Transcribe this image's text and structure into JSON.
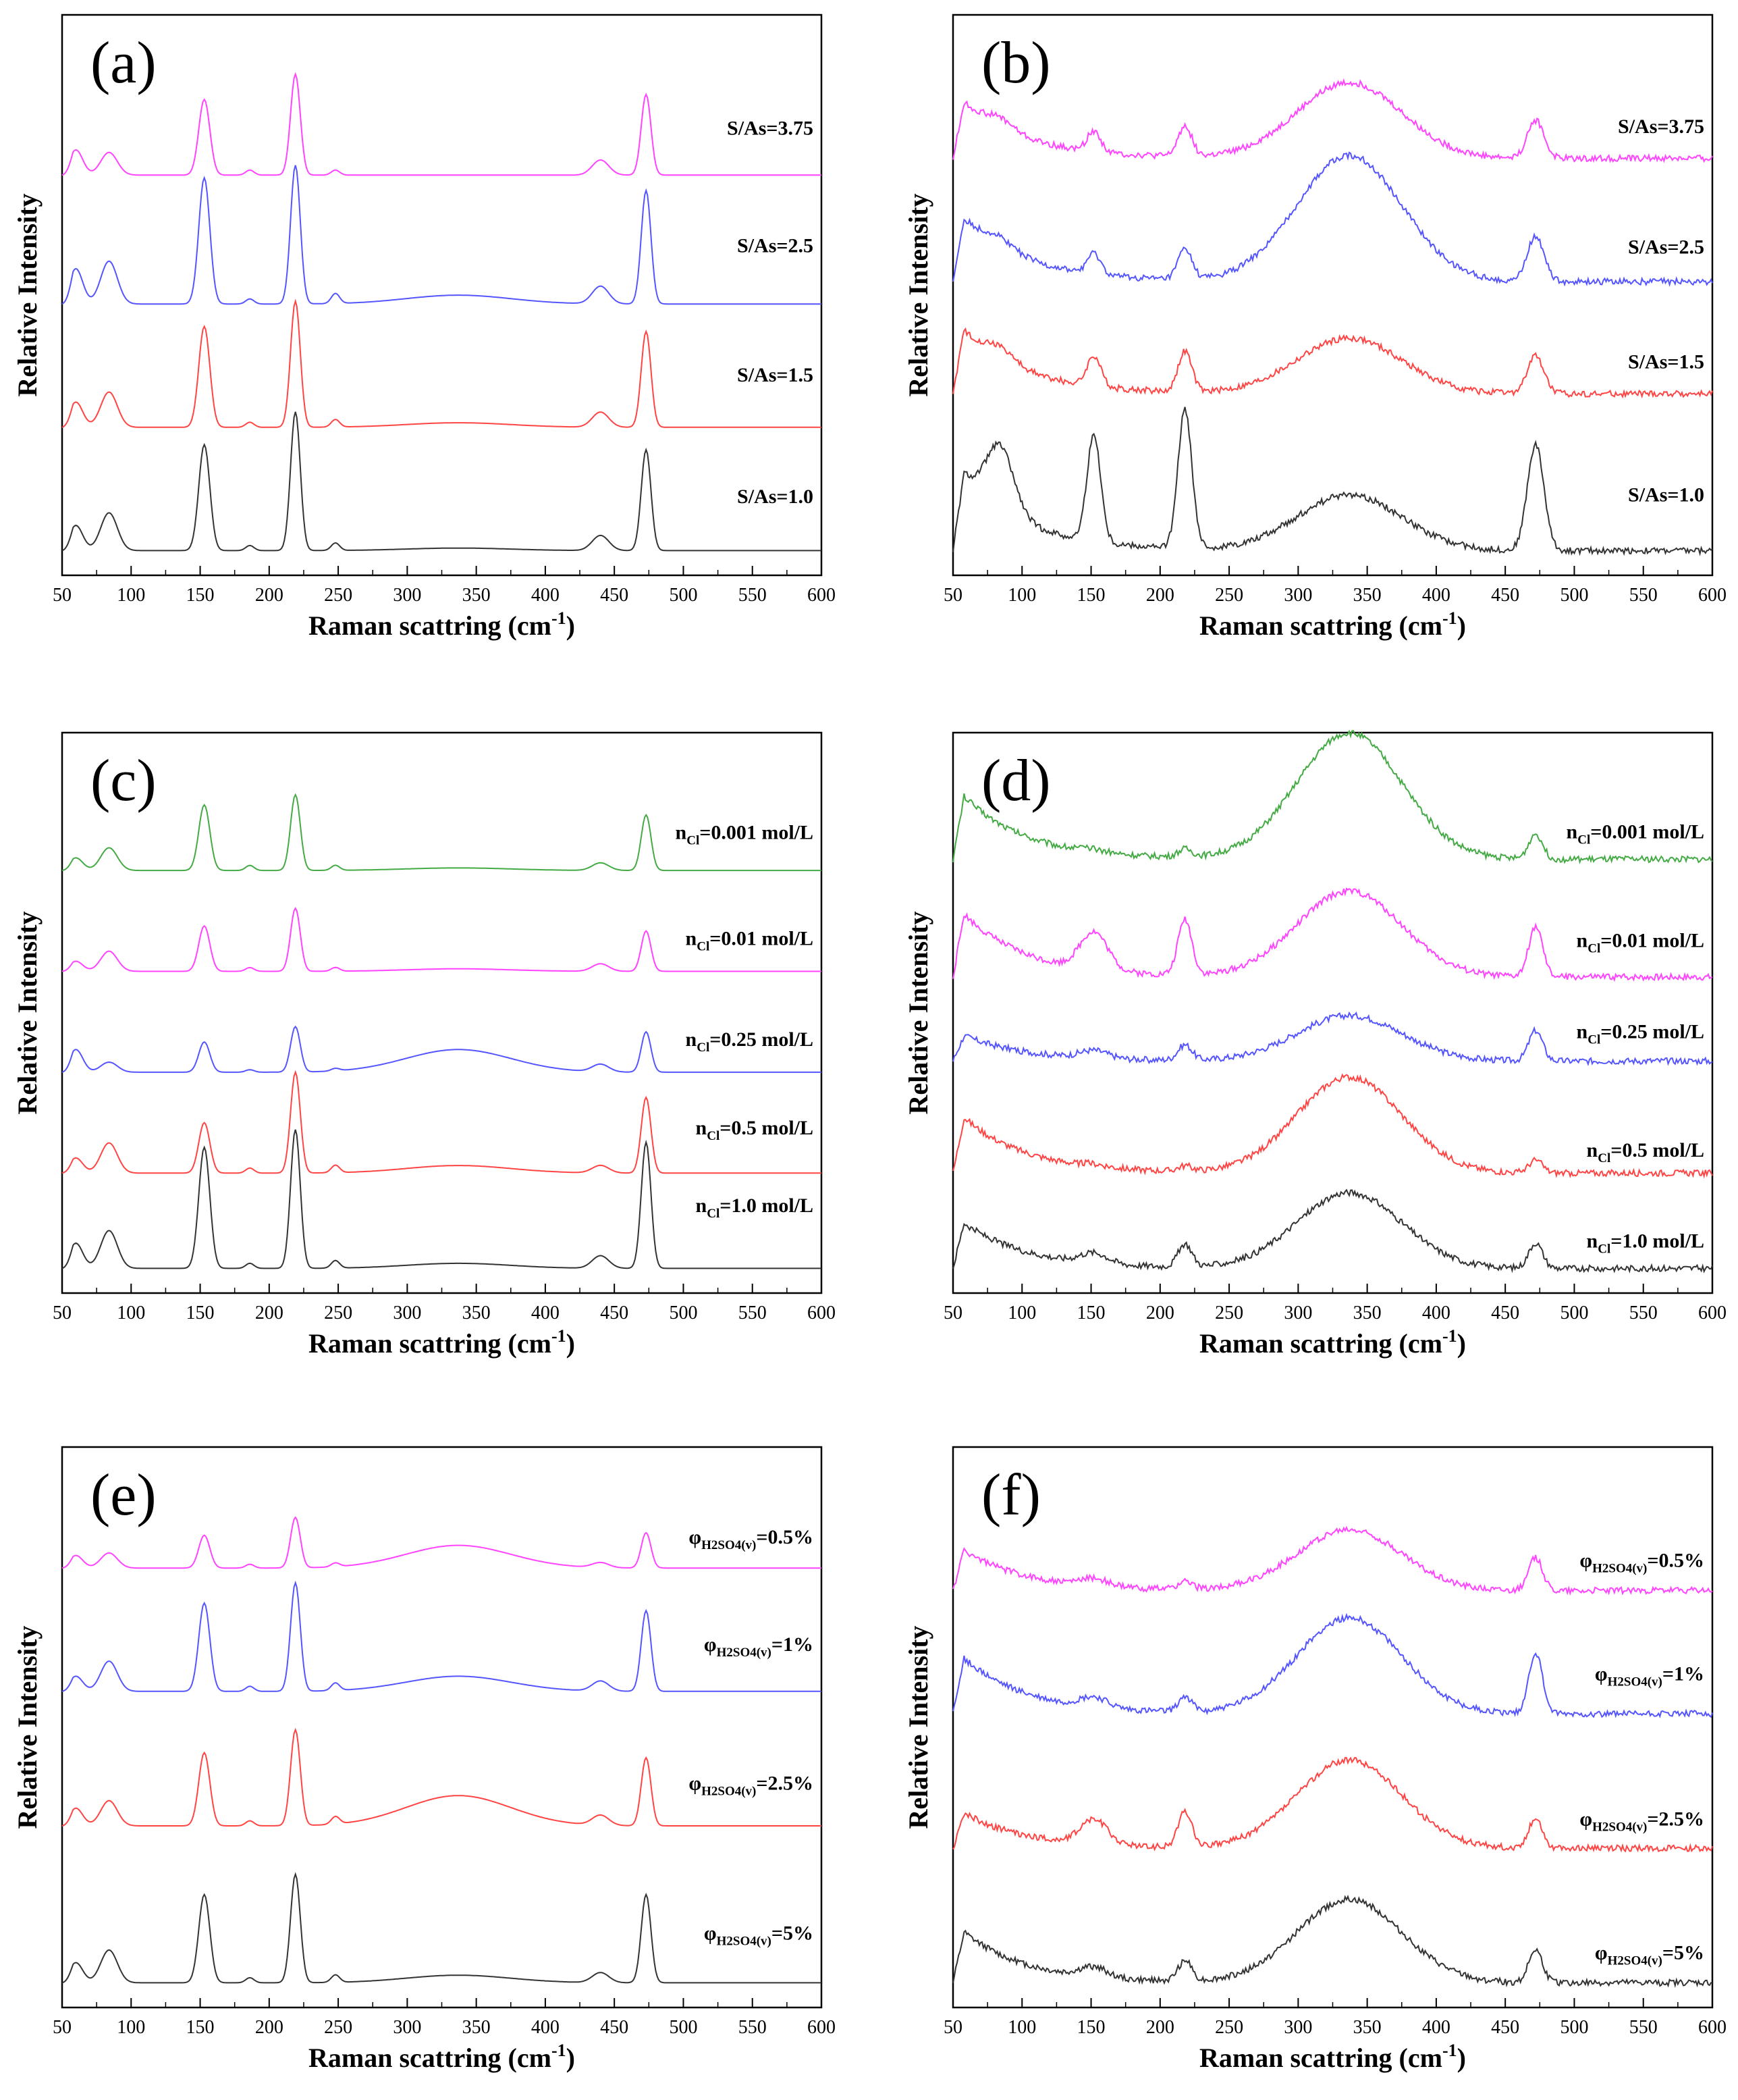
{
  "figure": {
    "x_axis_label_main": "Raman scattring (cm",
    "x_axis_label_sup": "-1",
    "x_axis_label_close": ")",
    "y_axis_label": "Relative Intensity"
  },
  "chart_data": [
    {
      "panel": "(a)",
      "type": "line",
      "xlabel": "Raman scattring (cm-1)",
      "ylabel": "Relative Intensity",
      "xlim": [
        50,
        600
      ],
      "xticks": [
        50,
        100,
        150,
        200,
        250,
        300,
        350,
        400,
        450,
        500,
        550,
        600
      ],
      "peak_positions": [
        60,
        84,
        153,
        186,
        219,
        248,
        440,
        473
      ],
      "series": [
        {
          "name": "S/As=3.75",
          "label_main": "S/As=3.75",
          "color": "#ff44ff",
          "baseline": 0.69,
          "peaks": [
            1.0,
            0.9,
            3.0,
            0.2,
            4.0,
            0.2,
            0.6,
            3.2
          ],
          "hump": 0.0
        },
        {
          "name": "S/As=2.5",
          "label_main": "S/As=2.5",
          "color": "#5555ff",
          "baseline": 0.46,
          "peaks": [
            1.4,
            1.7,
            5.0,
            0.2,
            5.5,
            0.4,
            0.7,
            4.5
          ],
          "hump": 0.35
        },
        {
          "name": "S/As=1.5",
          "label_main": "S/As=1.5",
          "color": "#ff4444",
          "baseline": 0.24,
          "peaks": [
            1.0,
            1.4,
            4.0,
            0.2,
            5.0,
            0.3,
            0.6,
            3.8
          ],
          "hump": 0.18
        },
        {
          "name": "S/As=1.0",
          "label_main": "S/As=1.0",
          "color": "#333333",
          "baseline": 0.02,
          "peaks": [
            1.0,
            1.5,
            4.2,
            0.2,
            5.5,
            0.3,
            0.6,
            4.0
          ],
          "hump": 0.1
        }
      ]
    },
    {
      "panel": "(b)",
      "type": "line",
      "xlabel": "Raman scattring (cm-1)",
      "ylabel": "Relative Intensity",
      "xlim": [
        50,
        600
      ],
      "xticks": [
        50,
        100,
        150,
        200,
        250,
        300,
        350,
        400,
        450,
        500,
        550,
        600
      ],
      "peak_positions": [
        60,
        84,
        152,
        218,
        472
      ],
      "series": [
        {
          "name": "S/As=3.75",
          "label_main": "S/As=3.75",
          "color": "#ff44ff",
          "baseline": 0.72,
          "peaks": [
            2.2,
            0.4,
            0.8,
            1.2,
            1.5
          ],
          "hump": 3.0
        },
        {
          "name": "S/As=2.5",
          "label_main": "S/As=2.5",
          "color": "#5555ff",
          "baseline": 0.5,
          "peaks": [
            2.5,
            0.4,
            0.8,
            1.2,
            1.8
          ],
          "hump": 5.0
        },
        {
          "name": "S/As=1.5",
          "label_main": "S/As=1.5",
          "color": "#ff4444",
          "baseline": 0.3,
          "peaks": [
            2.5,
            0.5,
            1.2,
            1.6,
            1.5
          ],
          "hump": 2.2
        },
        {
          "name": "S/As=1.0",
          "label_main": "S/As=1.0",
          "color": "#333333",
          "baseline": 0.02,
          "peaks": [
            3.0,
            2.5,
            4.2,
            5.5,
            4.2
          ],
          "hump": 2.2
        }
      ]
    },
    {
      "panel": "(c)",
      "type": "line",
      "xlabel": "Raman scattring (cm-1)",
      "ylabel": "Relative Intensity",
      "xlim": [
        50,
        600
      ],
      "xticks": [
        50,
        100,
        150,
        200,
        250,
        300,
        350,
        400,
        450,
        500,
        550,
        600
      ],
      "peak_positions": [
        60,
        84,
        153,
        186,
        219,
        248,
        440,
        473
      ],
      "series": [
        {
          "name": "nCl=0.001 mol/L",
          "label_main": "n",
          "label_sub": "Cl",
          "label_rest": "=0.001 mol/L",
          "color": "#44aa44",
          "baseline": 0.73,
          "peaks": [
            0.5,
            0.9,
            2.6,
            0.2,
            3.0,
            0.2,
            0.3,
            2.2
          ],
          "hump": 0.1
        },
        {
          "name": "nCl=0.01 mol/L",
          "label_main": "n",
          "label_sub": "Cl",
          "label_rest": "=0.01 mol/L",
          "color": "#ff44ff",
          "baseline": 0.55,
          "peaks": [
            0.4,
            0.8,
            1.8,
            0.15,
            2.5,
            0.15,
            0.3,
            1.6
          ],
          "hump": 0.1
        },
        {
          "name": "nCl=0.25 mol/L",
          "label_main": "n",
          "label_sub": "Cl",
          "label_rest": "=0.25 mol/L",
          "color": "#5555ff",
          "baseline": 0.37,
          "peaks": [
            0.9,
            0.4,
            1.2,
            0.1,
            1.8,
            0.1,
            0.3,
            1.6
          ],
          "hump": 0.9
        },
        {
          "name": "nCl=0.5 mol/L",
          "label_main": "n",
          "label_sub": "Cl",
          "label_rest": "=0.5 mol/L",
          "color": "#ff4444",
          "baseline": 0.19,
          "peaks": [
            0.6,
            1.2,
            2.0,
            0.2,
            4.0,
            0.3,
            0.3,
            3.0
          ],
          "hump": 0.3
        },
        {
          "name": "nCl=1.0 mol/L",
          "label_main": "n",
          "label_sub": "Cl",
          "label_rest": "=1.0 mol/L",
          "color": "#333333",
          "baseline": 0.02,
          "peaks": [
            1.0,
            1.5,
            4.8,
            0.2,
            5.5,
            0.3,
            0.5,
            5.0
          ],
          "hump": 0.2
        }
      ]
    },
    {
      "panel": "(d)",
      "type": "line",
      "xlabel": "Raman scattring (cm-1)",
      "ylabel": "Relative Intensity",
      "xlim": [
        50,
        600
      ],
      "xticks": [
        50,
        100,
        150,
        200,
        250,
        300,
        350,
        400,
        450,
        500,
        550,
        600
      ],
      "peak_positions": [
        60,
        152,
        218,
        472
      ],
      "series": [
        {
          "name": "nCl=0.001 mol/L",
          "label_main": "n",
          "label_sub": "Cl",
          "label_rest": "=0.001 mol/L",
          "color": "#44aa44",
          "baseline": 0.75,
          "peaks": [
            2.5,
            0.1,
            0.3,
            1.0
          ],
          "hump": 5.0
        },
        {
          "name": "nCl=0.01 mol/L",
          "label_main": "n",
          "label_sub": "Cl",
          "label_rest": "=0.01 mol/L",
          "color": "#ff44ff",
          "baseline": 0.54,
          "peaks": [
            2.5,
            1.5,
            2.2,
            2.0
          ],
          "hump": 3.4
        },
        {
          "name": "nCl=0.25 mol/L",
          "label_main": "n",
          "label_sub": "Cl",
          "label_rest": "=0.25 mol/L",
          "color": "#5555ff",
          "baseline": 0.39,
          "peaks": [
            1.0,
            0.3,
            0.6,
            1.2
          ],
          "hump": 1.8
        },
        {
          "name": "nCl=0.5 mol/L",
          "label_main": "n",
          "label_sub": "Cl",
          "label_rest": "=0.5 mol/L",
          "color": "#ff4444",
          "baseline": 0.19,
          "peaks": [
            2.2,
            0.1,
            0.2,
            0.5
          ],
          "hump": 3.8
        },
        {
          "name": "nCl=1.0 mol/L",
          "label_main": "n",
          "label_sub": "Cl",
          "label_rest": "=1.0 mol/L",
          "color": "#333333",
          "baseline": 0.02,
          "peaks": [
            1.8,
            0.4,
            0.9,
            1.0
          ],
          "hump": 3.0
        }
      ]
    },
    {
      "panel": "(e)",
      "type": "line",
      "xlabel": "Raman scattring (cm-1)",
      "ylabel": "Relative Intensity",
      "xlim": [
        50,
        600
      ],
      "xticks": [
        50,
        100,
        150,
        200,
        250,
        300,
        350,
        400,
        450,
        500,
        550,
        600
      ],
      "peak_positions": [
        60,
        84,
        153,
        186,
        219,
        248,
        440,
        473
      ],
      "series": [
        {
          "name": "φH2SO4(v)=0.5%",
          "label_main": "φ",
          "label_sub": "H2SO4(v)",
          "label_rest": "=0.5%",
          "color": "#ff44ff",
          "baseline": 0.76,
          "peaks": [
            0.5,
            0.6,
            1.3,
            0.15,
            2.0,
            0.15,
            0.2,
            1.4
          ],
          "hump": 0.9
        },
        {
          "name": "φH2SO4(v)=1%",
          "label_main": "φ",
          "label_sub": "H2SO4(v)",
          "label_rest": "=1%",
          "color": "#5555ff",
          "baseline": 0.54,
          "peaks": [
            0.6,
            1.2,
            3.5,
            0.2,
            4.3,
            0.3,
            0.4,
            3.2
          ],
          "hump": 0.6
        },
        {
          "name": "φH2SO4(v)=2.5%",
          "label_main": "φ",
          "label_sub": "H2SO4(v)",
          "label_rest": "=2.5%",
          "color": "#ff4444",
          "baseline": 0.3,
          "peaks": [
            0.7,
            1.0,
            2.9,
            0.2,
            3.8,
            0.3,
            0.4,
            2.7
          ],
          "hump": 1.2
        },
        {
          "name": "φH2SO4(v)=5%",
          "label_main": "φ",
          "label_sub": "H2SO4(v)",
          "label_rest": "=5%",
          "color": "#333333",
          "baseline": 0.02,
          "peaks": [
            0.8,
            1.3,
            3.5,
            0.2,
            4.3,
            0.3,
            0.4,
            3.5
          ],
          "hump": 0.3
        }
      ]
    },
    {
      "panel": "(f)",
      "type": "line",
      "xlabel": "Raman scattring (cm-1)",
      "ylabel": "Relative Intensity",
      "xlim": [
        50,
        600
      ],
      "xticks": [
        50,
        100,
        150,
        200,
        250,
        300,
        350,
        400,
        450,
        500,
        550,
        600
      ],
      "peak_positions": [
        60,
        152,
        218,
        472
      ],
      "series": [
        {
          "name": "φH2SO4(v)=0.5%",
          "label_main": "φ",
          "label_sub": "H2SO4(v)",
          "label_rest": "=0.5%",
          "color": "#ff44ff",
          "baseline": 0.72,
          "peaks": [
            1.6,
            0.3,
            0.3,
            1.3
          ],
          "hump": 2.4
        },
        {
          "name": "φH2SO4(v)=1%",
          "label_main": "φ",
          "label_sub": "H2SO4(v)",
          "label_rest": "=1%",
          "color": "#5555ff",
          "baseline": 0.5,
          "peaks": [
            2.2,
            0.4,
            0.6,
            2.4
          ],
          "hump": 3.8
        },
        {
          "name": "φH2SO4(v)=2.5%",
          "label_main": "φ",
          "label_sub": "H2SO4(v)",
          "label_rest": "=2.5%",
          "color": "#ff4444",
          "baseline": 0.26,
          "peaks": [
            1.4,
            1.0,
            1.4,
            1.2
          ],
          "hump": 3.5
        },
        {
          "name": "φH2SO4(v)=5%",
          "label_main": "φ",
          "label_sub": "H2SO4(v)",
          "label_rest": "=5%",
          "color": "#333333",
          "baseline": 0.02,
          "peaks": [
            2.0,
            0.4,
            0.8,
            1.3
          ],
          "hump": 3.3
        }
      ]
    }
  ]
}
